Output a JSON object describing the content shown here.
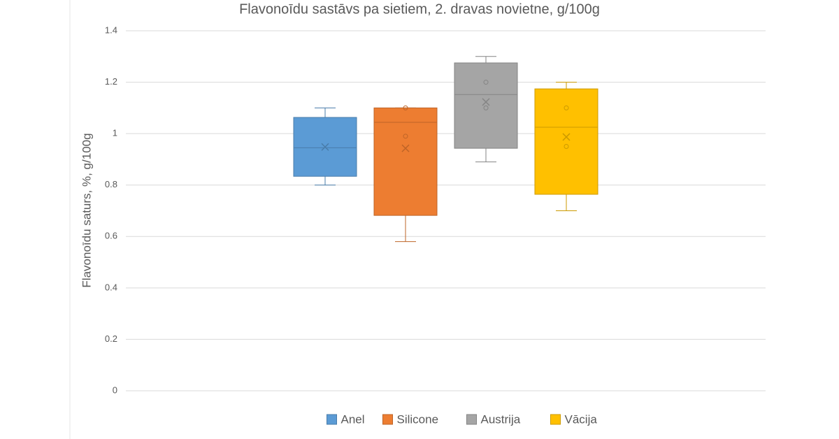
{
  "chart_data": {
    "type": "box",
    "title": "Flavonoīdu sastāvs pa sietiem, 2. dravas novietne, g/100g",
    "y_label": "Flavonoīdu saturs, %, g/100g",
    "ylim": [
      0,
      1.4
    ],
    "yticks": [
      0,
      0.2,
      0.4,
      0.6,
      0.8,
      1,
      1.2,
      1.4
    ],
    "grid": true,
    "legend": "bottom",
    "series": [
      {
        "name": "Anel",
        "color": "#5b9bd5",
        "whisker_low": 0.8,
        "q1": 0.834,
        "median": 0.945,
        "q3": 1.063,
        "whisker_high": 1.1,
        "mean": 0.948,
        "points": []
      },
      {
        "name": "Silicone",
        "color": "#ed7d31",
        "whisker_low": 0.58,
        "q1": 0.682,
        "median": 1.044,
        "q3": 1.1,
        "whisker_high": 1.1,
        "mean": 0.943,
        "points": [
          0.99,
          1.1
        ]
      },
      {
        "name": "Austrija",
        "color": "#a5a5a5",
        "whisker_low": 0.89,
        "q1": 0.943,
        "median": 1.152,
        "q3": 1.275,
        "whisker_high": 1.3,
        "mean": 1.123,
        "points": [
          1.2,
          1.1
        ]
      },
      {
        "name": "Vācija",
        "color": "#ffc000",
        "whisker_low": 0.7,
        "q1": 0.764,
        "median": 1.025,
        "q3": 1.174,
        "whisker_high": 1.2,
        "mean": 0.987,
        "points": [
          1.1,
          0.95
        ]
      }
    ]
  }
}
